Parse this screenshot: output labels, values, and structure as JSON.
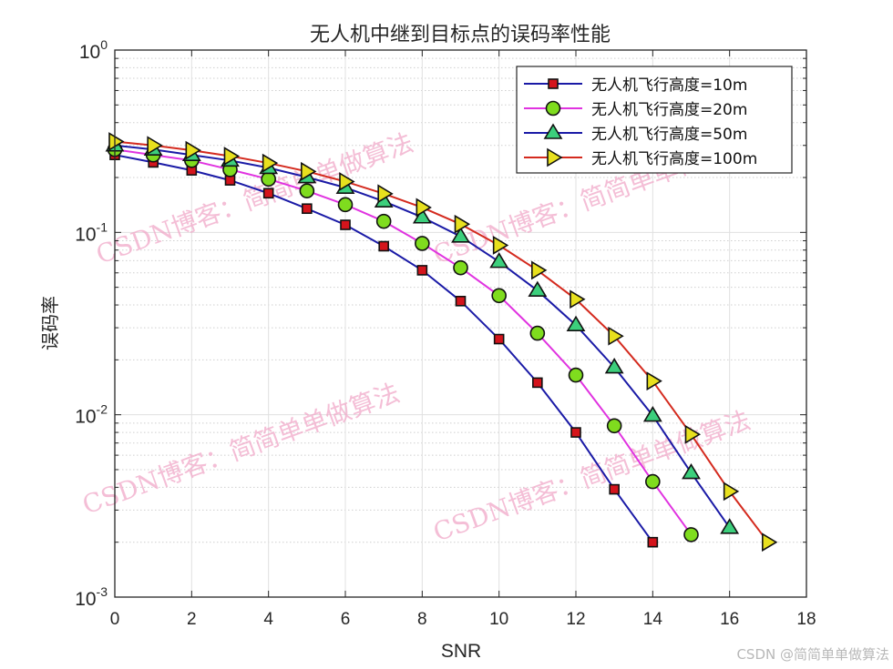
{
  "chart_data": {
    "type": "line",
    "title": "无人机中继到目标点的误码率性能",
    "xlabel": "SNR",
    "ylabel": "误码率",
    "xlim": [
      0,
      18
    ],
    "ylim": [
      0.001,
      1
    ],
    "yscale": "log",
    "grid": true,
    "minor_grid": true,
    "legend_position": "northeast",
    "x_ticks": [
      "0",
      "2",
      "4",
      "6",
      "8",
      "10",
      "12",
      "14",
      "16",
      "18"
    ],
    "y_ticks": [
      {
        "base": "10",
        "exp": "0"
      },
      {
        "base": "10",
        "exp": "-1"
      },
      {
        "base": "10",
        "exp": "-2"
      },
      {
        "base": "10",
        "exp": "-3"
      }
    ],
    "series": [
      {
        "name": "无人机飞行高度=10m",
        "line_color": "#1a1aa6",
        "marker": "square",
        "marker_fill": "#d4141c",
        "x": [
          0,
          1,
          2,
          3,
          4,
          5,
          6,
          7,
          8,
          9,
          10,
          11,
          12,
          13,
          14
        ],
        "values": [
          0.266,
          0.242,
          0.219,
          0.193,
          0.164,
          0.135,
          0.11,
          0.084,
          0.062,
          0.042,
          0.026,
          0.015,
          0.008,
          0.0039,
          0.002
        ]
      },
      {
        "name": "无人机飞行高度=20m",
        "line_color": "#e033e0",
        "marker": "circle",
        "marker_fill": "#7fdc1e",
        "x": [
          0,
          1,
          2,
          3,
          4,
          5,
          6,
          7,
          8,
          9,
          10,
          11,
          12,
          13,
          14,
          15
        ],
        "values": [
          0.285,
          0.266,
          0.248,
          0.221,
          0.196,
          0.169,
          0.142,
          0.115,
          0.087,
          0.064,
          0.045,
          0.028,
          0.0165,
          0.0087,
          0.0043,
          0.0022
        ]
      },
      {
        "name": "无人机飞行高度=50m",
        "line_color": "#1a1aa6",
        "marker": "triangle-up",
        "marker_fill": "#3ccf7c",
        "x": [
          0,
          1,
          2,
          3,
          4,
          5,
          6,
          7,
          8,
          9,
          10,
          11,
          12,
          13,
          14,
          15,
          16
        ],
        "values": [
          0.3,
          0.285,
          0.266,
          0.248,
          0.226,
          0.201,
          0.176,
          0.148,
          0.121,
          0.095,
          0.069,
          0.048,
          0.031,
          0.0182,
          0.0099,
          0.0048,
          0.0024
        ]
      },
      {
        "name": "无人机飞行高度=100m",
        "line_color": "#d42a1e",
        "marker": "triangle-right",
        "marker_fill": "#e8e01e",
        "x": [
          0,
          1,
          2,
          3,
          4,
          5,
          6,
          7,
          8,
          9,
          10,
          11,
          12,
          13,
          14,
          15,
          16,
          17
        ],
        "values": [
          0.315,
          0.3,
          0.282,
          0.262,
          0.24,
          0.216,
          0.19,
          0.163,
          0.137,
          0.111,
          0.085,
          0.062,
          0.043,
          0.027,
          0.0153,
          0.0078,
          0.0038,
          0.002
        ]
      }
    ]
  },
  "watermarks": [
    "CSDN博客：简简单单做算法",
    "CSDN博客：简简单单做算法",
    "CSDN博客：简简单单做算法",
    "CSDN博客：简简单单做算法"
  ],
  "footer_credit": "CSDN @简简单单做算法"
}
